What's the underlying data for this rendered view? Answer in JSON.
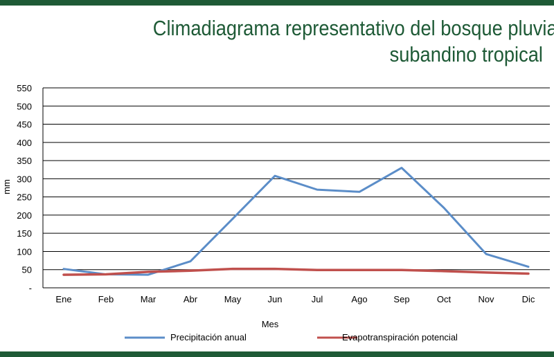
{
  "header": {
    "title_line1": "Climadiagrama representativo del bosque pluvial",
    "title_line2": "subandino tropical"
  },
  "colors": {
    "frame": "#1e5a36",
    "precipitation": "#5b8dc8",
    "evapotranspiration": "#c0504d",
    "grid": "#000000"
  },
  "chart_data": {
    "type": "line",
    "xlabel": "Mes",
    "ylabel": "mm",
    "ylim": [
      0,
      550
    ],
    "y_ticks": [
      "-",
      "50",
      "100",
      "150",
      "200",
      "250",
      "300",
      "350",
      "400",
      "450",
      "500",
      "550"
    ],
    "categories": [
      "Ene",
      "Feb",
      "Mar",
      "Abr",
      "May",
      "Jun",
      "Jul",
      "Ago",
      "Sep",
      "Oct",
      "Nov",
      "Dic"
    ],
    "grid": true,
    "legend_position": "bottom",
    "series": [
      {
        "name": "Precipitación anual",
        "color": "#5b8dc8",
        "values": [
          52,
          37,
          36,
          73,
          190,
          308,
          270,
          264,
          330,
          220,
          93,
          58
        ]
      },
      {
        "name": "Evapotranspiración potencial",
        "color": "#c0504d",
        "values": [
          36,
          37,
          44,
          47,
          52,
          52,
          49,
          49,
          49,
          46,
          42,
          39
        ]
      }
    ]
  }
}
